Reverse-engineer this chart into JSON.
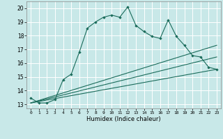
{
  "title": "",
  "xlabel": "Humidex (Indice chaleur)",
  "ylabel": "",
  "xlim": [
    -0.5,
    23.5
  ],
  "ylim": [
    12.7,
    20.5
  ],
  "xticks": [
    0,
    1,
    2,
    3,
    4,
    5,
    6,
    7,
    8,
    9,
    10,
    11,
    12,
    13,
    14,
    15,
    16,
    17,
    18,
    19,
    20,
    21,
    22,
    23
  ],
  "yticks": [
    13,
    14,
    15,
    16,
    17,
    18,
    19,
    20
  ],
  "bg_color": "#c8e8e8",
  "grid_color": "#ffffff",
  "line_color": "#1a6b5a",
  "line1_x": [
    0,
    1,
    2,
    3,
    4,
    5,
    6,
    7,
    8,
    9,
    10,
    11,
    12,
    13,
    14,
    15,
    16,
    17,
    18,
    19,
    20,
    21,
    22,
    23
  ],
  "line1_y": [
    13.45,
    13.1,
    13.1,
    13.35,
    14.8,
    15.2,
    16.8,
    18.55,
    19.0,
    19.35,
    19.5,
    19.35,
    20.1,
    18.75,
    18.3,
    17.95,
    17.8,
    19.15,
    17.95,
    17.3,
    16.55,
    16.45,
    15.7,
    15.55
  ],
  "line2_x": [
    0,
    23
  ],
  "line2_y": [
    13.1,
    15.55
  ],
  "line3_x": [
    0,
    23
  ],
  "line3_y": [
    13.1,
    16.45
  ],
  "line4_x": [
    0,
    23
  ],
  "line4_y": [
    13.1,
    17.3
  ],
  "figsize": [
    3.2,
    2.0
  ],
  "dpi": 100
}
